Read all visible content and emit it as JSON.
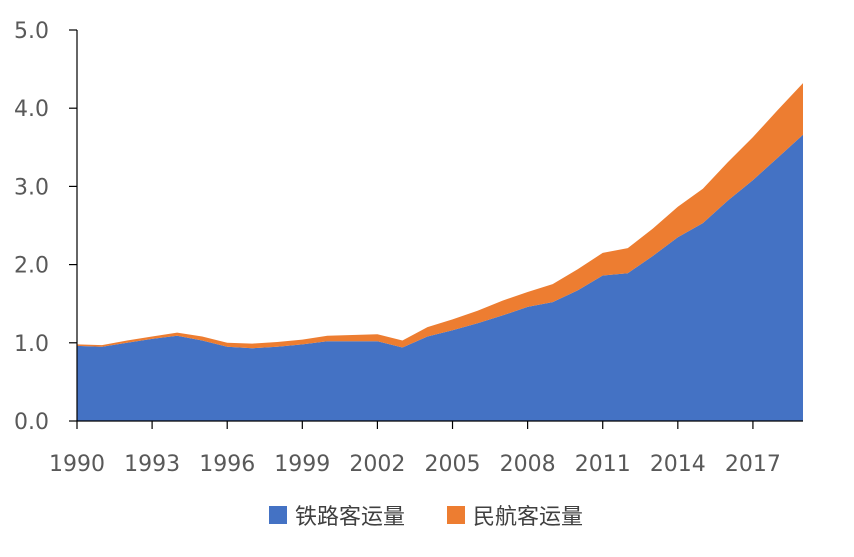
{
  "chart_data": {
    "type": "area",
    "stacked": true,
    "x": [
      1990,
      1991,
      1992,
      1993,
      1994,
      1995,
      1996,
      1997,
      1998,
      1999,
      2000,
      2001,
      2002,
      2003,
      2004,
      2005,
      2006,
      2007,
      2008,
      2009,
      2010,
      2011,
      2012,
      2013,
      2014,
      2015,
      2016,
      2017,
      2018,
      2019
    ],
    "x_ticks": [
      "1990",
      "1993",
      "1996",
      "1999",
      "2002",
      "2005",
      "2008",
      "2011",
      "2014",
      "2017"
    ],
    "y_ticks": [
      "0.0",
      "1.0",
      "2.0",
      "3.0",
      "4.0",
      "5.0"
    ],
    "ylim": [
      0,
      5
    ],
    "xlim": [
      1990,
      2019
    ],
    "series": [
      {
        "name": "铁路客运量",
        "color": "#4472C4",
        "values": [
          0.96,
          0.95,
          1.0,
          1.05,
          1.09,
          1.03,
          0.95,
          0.93,
          0.95,
          0.98,
          1.02,
          1.02,
          1.02,
          0.94,
          1.08,
          1.16,
          1.25,
          1.35,
          1.46,
          1.52,
          1.67,
          1.86,
          1.89,
          2.11,
          2.35,
          2.53,
          2.82,
          3.08,
          3.37,
          3.66
        ]
      },
      {
        "name": "民航客运量",
        "color": "#ED7D31",
        "values": [
          0.02,
          0.02,
          0.03,
          0.03,
          0.04,
          0.05,
          0.05,
          0.06,
          0.06,
          0.06,
          0.07,
          0.08,
          0.09,
          0.09,
          0.12,
          0.14,
          0.16,
          0.19,
          0.19,
          0.23,
          0.27,
          0.29,
          0.32,
          0.35,
          0.39,
          0.44,
          0.49,
          0.55,
          0.61,
          0.66
        ]
      }
    ],
    "legend_position": "bottom",
    "grid": false
  }
}
